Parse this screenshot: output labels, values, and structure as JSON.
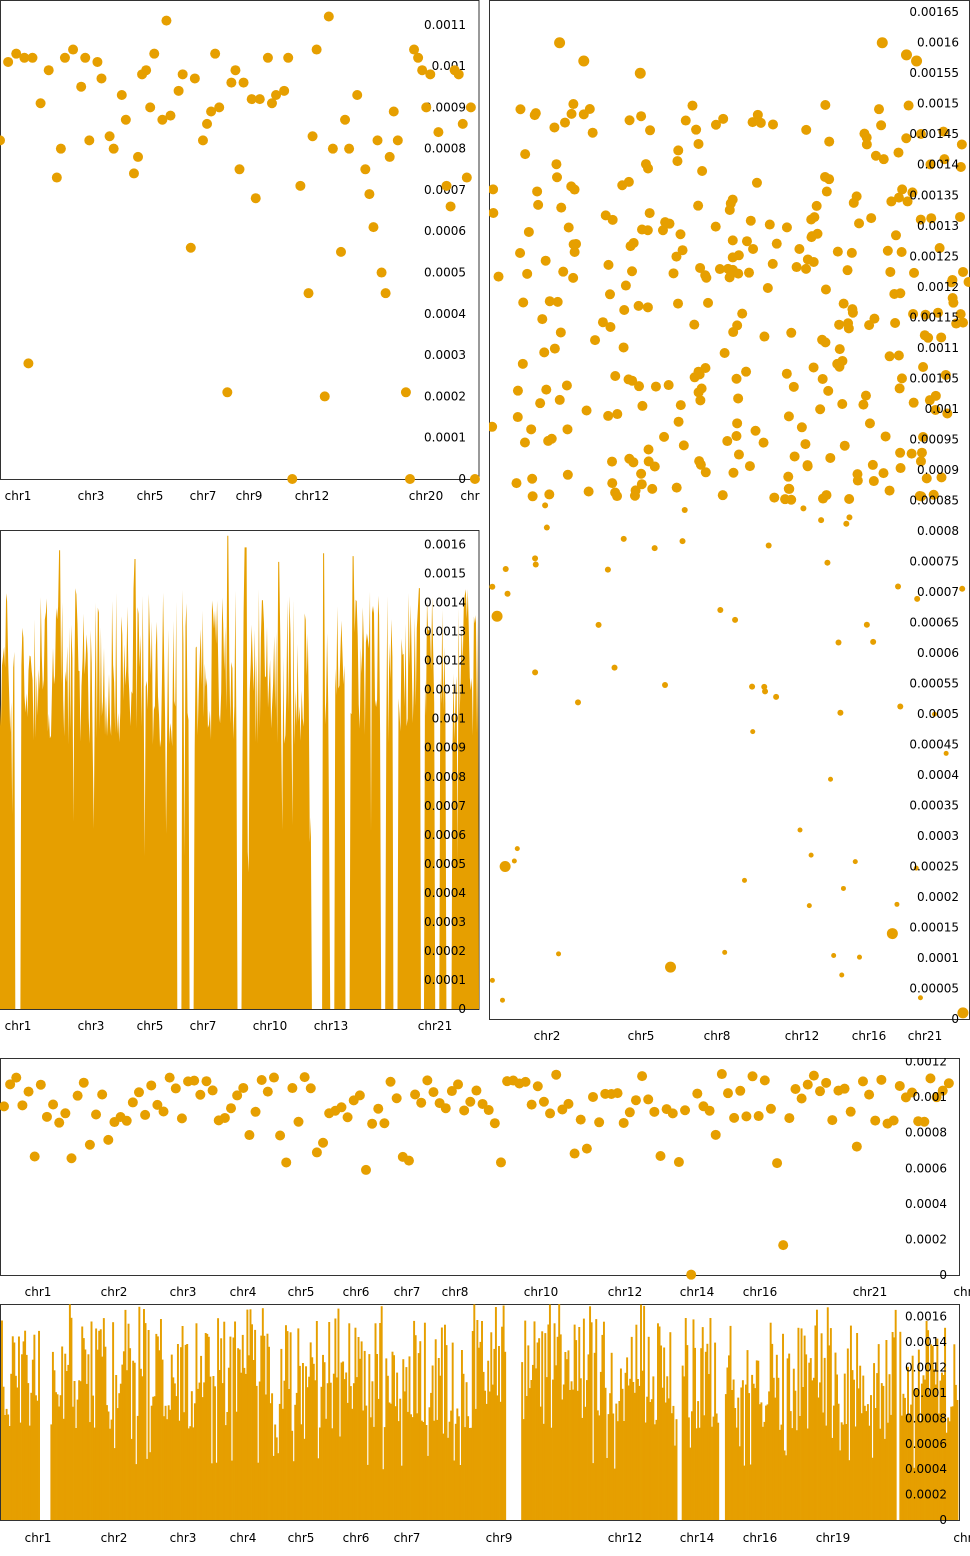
{
  "accent_color": "#E69F00",
  "chart_data": [
    {
      "type": "scatter",
      "panel": "top-left",
      "chromosome_labels": [
        "chr1",
        "chr3",
        "chr5",
        "chr7",
        "chr9",
        "chr12",
        "chr20",
        "chr"
      ],
      "yticks": [
        "0",
        "0.0001",
        "0.0002",
        "0.0003",
        "0.0004",
        "0.0005",
        "0.0006",
        "0.0007",
        "0.0008",
        "0.0009",
        "0.001",
        "0.0011"
      ],
      "ylim": [
        0,
        0.00116
      ],
      "xlim": [
        0,
        118
      ],
      "x": [
        0,
        2,
        4,
        6,
        7,
        8,
        10,
        12,
        14,
        15,
        16,
        18,
        20,
        21,
        22,
        24,
        25,
        27,
        28,
        30,
        31,
        33,
        34,
        35,
        36,
        37,
        38,
        40,
        41,
        42,
        44,
        45,
        47,
        48,
        50,
        51,
        52,
        53,
        54,
        56,
        57,
        58,
        59,
        60,
        62,
        63,
        64,
        66,
        67,
        68,
        70,
        71,
        72,
        74,
        76,
        77,
        78,
        80,
        81,
        82,
        84,
        85,
        86,
        88,
        90,
        91,
        92,
        93,
        94,
        95,
        96,
        97,
        98,
        100,
        101,
        102,
        103,
        104,
        105,
        106,
        108,
        110,
        111,
        112,
        113,
        114,
        115,
        116,
        117
      ],
      "y": [
        0.00082,
        0.00101,
        0.00103,
        0.00102,
        0.00028,
        0.00102,
        0.00091,
        0.00099,
        0.00073,
        0.0008,
        0.00102,
        0.00104,
        0.00095,
        0.00102,
        0.00082,
        0.00101,
        0.00097,
        0.00083,
        0.0008,
        0.00093,
        0.00087,
        0.00074,
        0.00078,
        0.00098,
        0.00099,
        0.0009,
        0.00103,
        0.00087,
        0.00111,
        0.00088,
        0.00094,
        0.00098,
        0.00056,
        0.00097,
        0.00082,
        0.00086,
        0.00089,
        0.00103,
        0.0009,
        0.00021,
        0.00096,
        0.00099,
        0.00075,
        0.00096,
        0.00092,
        0.00068,
        0.00092,
        0.00102,
        0.00091,
        0.00093,
        0.00094,
        0.00102,
        0.0,
        0.00071,
        0.00045,
        0.00083,
        0.00104,
        0.0002,
        0.00112,
        0.0008,
        0.00055,
        0.00087,
        0.0008,
        0.00093,
        0.00075,
        0.00069,
        0.00061,
        0.00082,
        0.0005,
        0.00045,
        0.00078,
        0.00089,
        0.00082,
        0.00021,
        0.0,
        0.00104,
        0.00102,
        0.00099,
        0.0009,
        0.00098,
        0.00084,
        0.00071,
        0.00066,
        0.00099,
        0.00098,
        0.00086,
        0.00073,
        0.0009,
        0.0
      ]
    },
    {
      "type": "area",
      "panel": "middle-left",
      "chromosome_labels": [
        "chr1",
        "chr3",
        "chr5",
        "chr7",
        "chr10",
        "chr13",
        "chr21"
      ],
      "yticks": [
        "0",
        "0.0001",
        "0.0002",
        "0.0003",
        "0.0004",
        "0.0005",
        "0.0006",
        "0.0007",
        "0.0008",
        "0.0009",
        "0.001",
        "0.0011",
        "0.0012",
        "0.0013",
        "0.0014",
        "0.0015",
        "0.0016"
      ],
      "ylim": [
        0,
        0.00165
      ],
      "xlim": [
        0,
        160
      ],
      "gap_positions": [
        6,
        60,
        64,
        80,
        105,
        107,
        111,
        116,
        128,
        132,
        141,
        146,
        150
      ],
      "peak_positions": [
        20,
        45,
        76,
        82,
        93,
        108,
        118,
        140
      ],
      "peak_values": [
        0.00158,
        0.00155,
        0.00163,
        0.00159,
        0.00154,
        0.00157,
        0.00156,
        0.00145
      ]
    },
    {
      "type": "scatter",
      "panel": "right",
      "chromosome_labels": [
        "chr2",
        "chr5",
        "chr8",
        "chr12",
        "chr16",
        "chr21"
      ],
      "yticks": [
        "0",
        "0.00005",
        "0.0001",
        "0.00015",
        "0.0002",
        "0.00025",
        "0.0003",
        "0.00035",
        "0.0004",
        "0.00045",
        "0.0005",
        "0.00055",
        "0.0006",
        "0.00065",
        "0.0007",
        "0.00075",
        "0.0008",
        "0.00085",
        "0.0009",
        "0.00095",
        "0.001",
        "0.00105",
        "0.0011",
        "0.00115",
        "0.0012",
        "0.00125",
        "0.0013",
        "0.00135",
        "0.0014",
        "0.00145",
        "0.0015",
        "0.00155",
        "0.0016",
        "0.00165"
      ],
      "ylim": [
        0,
        0.00167
      ],
      "x_range": [
        0,
        238
      ],
      "num_points": 390,
      "note_points": [
        {
          "x": 108,
          "y": 0.00168
        },
        {
          "x": 35,
          "y": 0.0016
        },
        {
          "x": 47,
          "y": 0.00157
        },
        {
          "x": 75,
          "y": 0.00155
        },
        {
          "x": 195,
          "y": 0.0016
        },
        {
          "x": 207,
          "y": 0.00158
        },
        {
          "x": 212,
          "y": 0.00157
        },
        {
          "x": 4,
          "y": 0.00066
        },
        {
          "x": 8,
          "y": 0.00025
        },
        {
          "x": 90,
          "y": 8.5e-05
        },
        {
          "x": 200,
          "y": 0.00014
        },
        {
          "x": 235,
          "y": 1e-05
        }
      ]
    },
    {
      "type": "scatter",
      "panel": "third-row",
      "chromosome_labels": [
        "chr1",
        "chr2",
        "chr3",
        "chr4",
        "chr5",
        "chr6",
        "chr7",
        "chr8",
        "chr10",
        "chr12",
        "chr14",
        "chr16",
        "chr21",
        "chr"
      ],
      "yticks": [
        "0",
        "0.0002",
        "0.0004",
        "0.0006",
        "0.0008",
        "0.001",
        "0.0012"
      ],
      "ylim": [
        0,
        0.00122
      ],
      "xlim": [
        0,
        150
      ],
      "num_points": 155
    },
    {
      "type": "bar",
      "panel": "bottom",
      "chromosome_labels": [
        "chr1",
        "chr2",
        "chr3",
        "chr4",
        "chr5",
        "chr6",
        "chr7",
        "chr9",
        "chr12",
        "chr14",
        "chr16",
        "chr19",
        "chr"
      ],
      "yticks": [
        "0",
        "0.0002",
        "0.0004",
        "0.0006",
        "0.0008",
        "0.001",
        "0.0012",
        "0.0014",
        "0.0016"
      ],
      "ylim": [
        0,
        0.0017
      ],
      "num_bars": 620,
      "gap_fractions": [
        0.04,
        0.051,
        0.527,
        0.542,
        0.705,
        0.711,
        0.75,
        0.755,
        0.935,
        0.938
      ]
    }
  ]
}
